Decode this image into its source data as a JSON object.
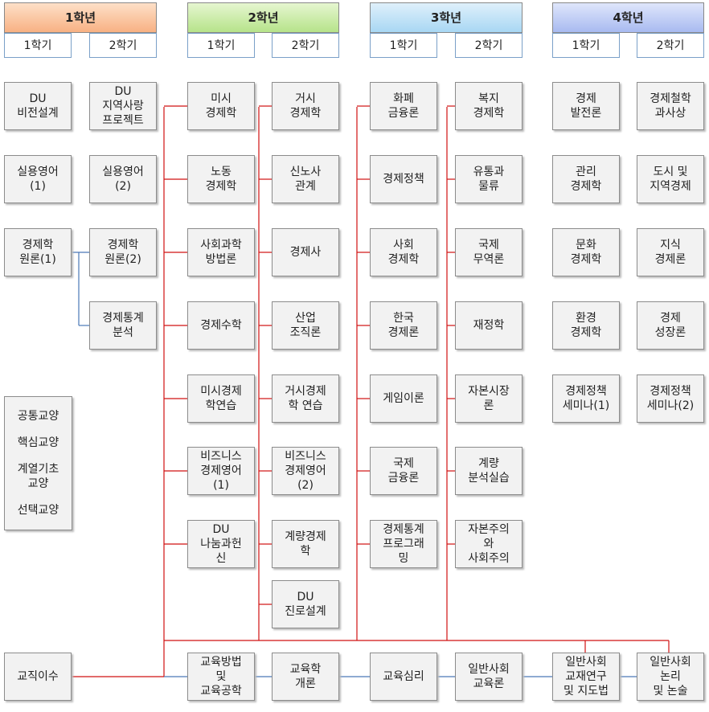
{
  "years": [
    {
      "title": "1학년",
      "terms": [
        "1학기",
        "2학기"
      ]
    },
    {
      "title": "2학년",
      "terms": [
        "1학기",
        "2학기"
      ]
    },
    {
      "title": "3학년",
      "terms": [
        "1학기",
        "2학기"
      ]
    },
    {
      "title": "4학년",
      "terms": [
        "1학기",
        "2학기"
      ]
    }
  ],
  "columns": [
    {
      "courses": [
        "DU\n비전설계",
        "실용영어\n(1)",
        "경제학\n원론(1)"
      ],
      "bottom": "교직이수"
    },
    {
      "courses": [
        "DU\n지역사랑\n프로젝트",
        "실용영어\n(2)",
        "경제학\n원론(2)",
        "경제통계\n분석"
      ]
    },
    {
      "courses": [
        "미시\n경제학",
        "노동\n경제학",
        "사회과학\n방법론",
        "경제수학",
        "미시경제\n학연습",
        "비즈니스\n경제영어\n(1)",
        "DU\n나눔과헌\n신"
      ],
      "bottom": "교육방법\n및\n교육공학"
    },
    {
      "courses": [
        "거시\n경제학",
        "신노사\n관계",
        "경제사",
        "산업\n조직론",
        "거시경제\n학 연습",
        "비즈니스\n경제영어\n(2)",
        "계량경제\n학",
        "DU\n진로설계"
      ],
      "bottom": "교육학\n개론"
    },
    {
      "courses": [
        "화폐\n금융론",
        "경제정책",
        "사회\n경제학",
        "한국\n경제론",
        "게임이론",
        "국제\n금융론",
        "경제통계\n프로그래\n밍"
      ],
      "bottom": "교육심리"
    },
    {
      "courses": [
        "복지\n경제학",
        "유통과\n물류",
        "국제\n무역론",
        "재정학",
        "자본시장\n론",
        "계량\n분석실습",
        "자본주의\n와\n사회주의"
      ],
      "bottom": "일반사회\n교육론"
    },
    {
      "courses": [
        "경제\n발전론",
        "관리\n경제학",
        "문화\n경제학",
        "환경\n경제학",
        "경제정책\n세미나(1)"
      ],
      "bottom": "일반사회\n교재연구\n및 지도법"
    },
    {
      "courses": [
        "경제철학\n과사상",
        "도시 및\n지역경제",
        "지식\n경제론",
        "경제\n성장론",
        "경제정책\n세미나(2)"
      ],
      "bottom": "일반사회\n논리\n및 논술"
    }
  ],
  "legend": [
    "공통교양",
    "핵심교양",
    "계열기초\n교양",
    "선택교양"
  ]
}
